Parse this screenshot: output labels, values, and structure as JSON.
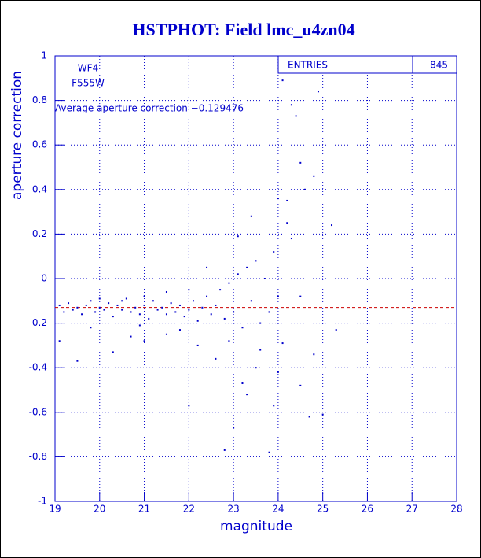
{
  "chart_data": {
    "type": "scatter",
    "title": "HSTPHOT: Field lmc_u4zn04",
    "x_label": "magnitude",
    "y_label": "aperture correction",
    "annotations": [
      "WF4",
      "F555W",
      "Average aperture correction −0.129476"
    ],
    "stats": {
      "label": "ENTRIES",
      "value": 845
    },
    "mean_line": {
      "value": -0.129476,
      "color": "#cc0000"
    },
    "color": "#0000cc",
    "grid": true,
    "xlim": [
      19,
      28
    ],
    "ylim": [
      -1,
      1
    ],
    "xticks": [
      19,
      20,
      21,
      22,
      23,
      24,
      25,
      26,
      27,
      28
    ],
    "yticks": [
      -1,
      -0.8,
      -0.6,
      -0.4,
      -0.2,
      0,
      0.2,
      0.4,
      0.6,
      0.8,
      1
    ],
    "x": [
      19.1,
      19.2,
      19.3,
      19.4,
      19.5,
      19.6,
      19.7,
      19.8,
      19.9,
      20.0,
      20.1,
      20.2,
      20.3,
      20.4,
      20.5,
      20.6,
      20.7,
      20.8,
      20.9,
      21.0,
      21.1,
      21.2,
      21.3,
      21.4,
      21.5,
      21.6,
      21.7,
      21.8,
      21.9,
      22.0,
      22.1,
      22.2,
      22.3,
      22.4,
      22.5,
      22.6,
      22.7,
      22.8,
      22.9,
      23.0,
      23.1,
      23.2,
      23.3,
      23.4,
      23.5,
      23.6,
      23.7,
      23.8,
      23.9,
      24.0,
      24.2,
      24.3,
      24.4,
      24.5,
      24.6,
      24.8,
      24.9,
      24.1,
      24.2,
      24.5,
      24.7,
      25.0,
      25.3,
      23.9,
      23.8,
      22.8,
      23.0,
      23.2,
      22.0,
      21.0,
      20.3,
      19.5,
      19.1,
      20.7,
      21.5,
      22.2,
      22.6,
      23.5,
      24.1,
      23.4,
      24.0,
      25.2,
      24.3,
      23.1,
      22.4,
      22.0,
      21.5,
      21.0,
      20.5,
      20.0,
      19.8,
      20.9,
      21.8,
      22.9,
      23.6,
      24.5,
      24.8,
      23.3,
      24.0
    ],
    "values": [
      -0.12,
      -0.15,
      -0.11,
      -0.14,
      -0.13,
      -0.16,
      -0.12,
      -0.1,
      -0.15,
      -0.13,
      -0.14,
      -0.11,
      -0.17,
      -0.12,
      -0.14,
      -0.09,
      -0.15,
      -0.13,
      -0.16,
      -0.12,
      -0.18,
      -0.1,
      -0.14,
      -0.13,
      -0.16,
      -0.11,
      -0.15,
      -0.12,
      -0.17,
      -0.14,
      -0.1,
      -0.19,
      -0.13,
      -0.08,
      -0.16,
      -0.12,
      -0.05,
      -0.18,
      -0.02,
      -0.15,
      0.02,
      -0.22,
      0.05,
      -0.1,
      0.08,
      -0.2,
      0.0,
      -0.15,
      0.12,
      -0.08,
      0.25,
      0.78,
      0.73,
      0.52,
      0.4,
      0.46,
      0.84,
      0.89,
      0.35,
      -0.48,
      -0.62,
      -0.61,
      -0.23,
      -0.57,
      -0.78,
      -0.77,
      -0.67,
      -0.47,
      -0.57,
      -0.28,
      -0.33,
      -0.37,
      -0.28,
      -0.26,
      -0.25,
      -0.3,
      -0.36,
      -0.4,
      -0.29,
      0.28,
      0.36,
      0.24,
      0.18,
      0.19,
      0.05,
      -0.05,
      -0.06,
      -0.08,
      -0.1,
      -0.09,
      -0.22,
      -0.21,
      -0.23,
      -0.28,
      -0.32,
      -0.08,
      -0.34,
      -0.52,
      -0.42
    ]
  }
}
